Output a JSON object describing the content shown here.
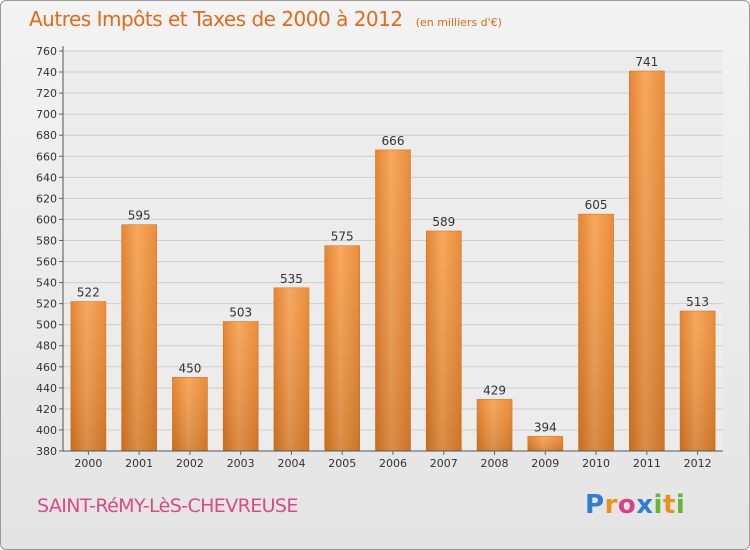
{
  "title": "Autres Impôts et Taxes de 2000 à 2012",
  "unit_note": "(en milliers d'€)",
  "city": "SAINT-RéMY-LèS-CHEVREUSE",
  "brand": "Proxiti",
  "colors": {
    "bar": "#f0923a",
    "title": "#e26b1b",
    "city": "#d94a86"
  },
  "chart_data": {
    "type": "bar",
    "categories": [
      "2000",
      "2001",
      "2002",
      "2003",
      "2004",
      "2005",
      "2006",
      "2007",
      "2008",
      "2009",
      "2010",
      "2011",
      "2012"
    ],
    "values": [
      522,
      595,
      450,
      503,
      535,
      575,
      666,
      589,
      429,
      394,
      605,
      741,
      513
    ],
    "ylim": [
      380,
      760
    ],
    "ytick_step": 20,
    "grid": true,
    "xlabel": "",
    "ylabel": ""
  }
}
